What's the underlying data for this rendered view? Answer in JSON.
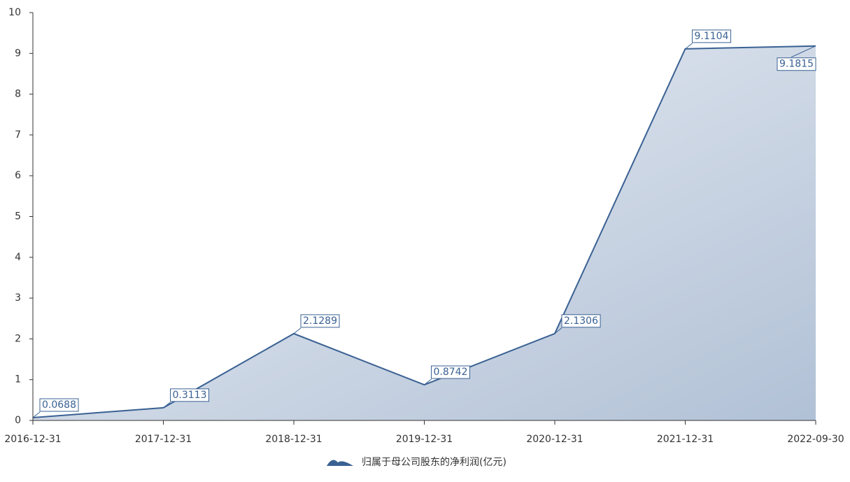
{
  "chart_data": {
    "type": "area",
    "categories": [
      "2016-12-31",
      "2017-12-31",
      "2018-12-31",
      "2019-12-31",
      "2020-12-31",
      "2021-12-31",
      "2022-09-30"
    ],
    "series": [
      {
        "name": "归属于母公司股东的净利润(亿元)",
        "color": "#3a6193",
        "values": [
          0.0688,
          0.3113,
          2.1289,
          0.8742,
          2.1306,
          9.1104,
          9.1815
        ]
      }
    ],
    "ylim": [
      0,
      10
    ],
    "yticks": [
      0,
      1,
      2,
      3,
      4,
      5,
      6,
      7,
      8,
      9,
      10
    ]
  }
}
